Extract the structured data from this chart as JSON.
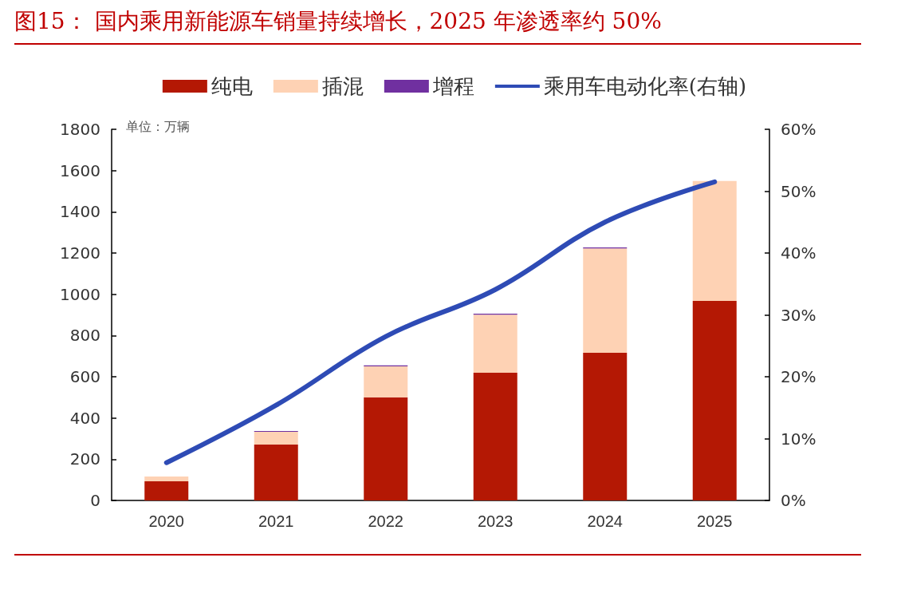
{
  "chart_data": {
    "type": "bar",
    "title": "图15：  国内乘用新能源车销量持续增长，2025 年渗透率约 50%",
    "categories": [
      "2020",
      "2021",
      "2022",
      "2023",
      "2024",
      "2025"
    ],
    "stacked": true,
    "series": [
      {
        "name": "纯电",
        "color": "#b41804",
        "values": [
          93,
          271,
          500,
          619,
          716,
          968
        ]
      },
      {
        "name": "插混",
        "color": "#fed2b4",
        "values": [
          23,
          62,
          150,
          282,
          506,
          581
        ]
      },
      {
        "name": "增程",
        "color": "#7030a0",
        "values": [
          0,
          4,
          5,
          5,
          5,
          0
        ]
      },
      {
        "name": "乘用车电动化率(右轴)",
        "type": "line",
        "axis": "y2",
        "color": "#2e4bb5",
        "values": [
          6.1,
          15.4,
          26.5,
          34.1,
          45.0,
          51.5
        ]
      }
    ],
    "ylim": [
      0,
      1800
    ],
    "yticks": [
      0,
      200,
      400,
      600,
      800,
      1000,
      1200,
      1400,
      1600,
      1800
    ],
    "y2lim": [
      0,
      60
    ],
    "y2ticks": [
      {
        "value": 0,
        "label": "0%"
      },
      {
        "value": 10,
        "label": "10%"
      },
      {
        "value": 20,
        "label": "20%"
      },
      {
        "value": 30,
        "label": "30%"
      },
      {
        "value": 40,
        "label": "40%"
      },
      {
        "value": 50,
        "label": "50%"
      },
      {
        "value": 60,
        "label": "60%"
      }
    ],
    "annotations": [
      "单位：万辆"
    ],
    "legend": "top",
    "grid": false,
    "marker": "none",
    "line_style": "solid"
  }
}
